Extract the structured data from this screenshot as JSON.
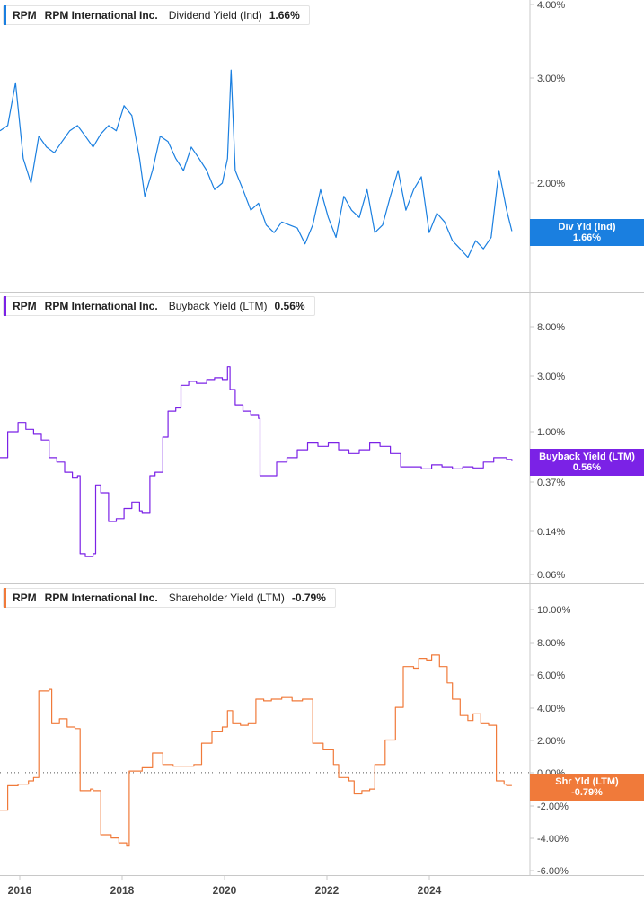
{
  "panels": [
    {
      "ticker": "RPM",
      "company": "RPM International Inc.",
      "metric": "Dividend Yield (Ind)",
      "value": "1.66%",
      "tag_label": "Div Yld (Ind)",
      "tag_value": "1.66%",
      "color": "#1a7fe0",
      "y_ticks": [
        "4.00%",
        "3.00%",
        "2.00%"
      ]
    },
    {
      "ticker": "RPM",
      "company": "RPM International Inc.",
      "metric": "Buyback Yield (LTM)",
      "value": "0.56%",
      "tag_label": "Buyback Yield (LTM)",
      "tag_value": "0.56%",
      "color": "#7b22e6",
      "y_ticks": [
        "8.00%",
        "3.00%",
        "1.00%",
        "0.37%",
        "0.14%",
        "0.06%"
      ]
    },
    {
      "ticker": "RPM",
      "company": "RPM International Inc.",
      "metric": "Shareholder Yield (LTM)",
      "value": "-0.79%",
      "tag_label": "Shr Yld (LTM)",
      "tag_value": "-0.79%",
      "color": "#f07a3a",
      "y_ticks": [
        "10.00%",
        "8.00%",
        "6.00%",
        "4.00%",
        "2.00%",
        "0.00%",
        "-2.00%",
        "-4.00%",
        "-6.00%"
      ]
    }
  ],
  "x_ticks": [
    "2016",
    "2018",
    "2020",
    "2022",
    "2024"
  ],
  "chart_data": [
    {
      "type": "line",
      "title": "",
      "series": [
        {
          "name": "Dividend Yield (Ind)",
          "color": "#1a7fe0",
          "x": [
            2015.75,
            2015.9,
            2016.05,
            2016.2,
            2016.35,
            2016.5,
            2016.65,
            2016.8,
            2016.95,
            2017.1,
            2017.25,
            2017.4,
            2017.55,
            2017.7,
            2017.85,
            2018.0,
            2018.15,
            2018.3,
            2018.45,
            2018.55,
            2018.7,
            2018.85,
            2019.0,
            2019.15,
            2019.3,
            2019.45,
            2019.6,
            2019.75,
            2019.9,
            2020.05,
            2020.15,
            2020.22,
            2020.3,
            2020.45,
            2020.6,
            2020.75,
            2020.9,
            2021.05,
            2021.2,
            2021.35,
            2021.5,
            2021.65,
            2021.8,
            2021.95,
            2022.1,
            2022.25,
            2022.4,
            2022.55,
            2022.7,
            2022.85,
            2023.0,
            2023.15,
            2023.3,
            2023.45,
            2023.6,
            2023.75,
            2023.9,
            2024.05,
            2024.2,
            2024.35,
            2024.5,
            2024.65,
            2024.8,
            2024.95,
            2025.1,
            2025.25,
            2025.4,
            2025.55,
            2025.65
          ],
          "y": [
            2.45,
            2.5,
            2.95,
            2.2,
            2.0,
            2.4,
            2.3,
            2.25,
            2.35,
            2.45,
            2.5,
            2.4,
            2.3,
            2.42,
            2.5,
            2.45,
            2.7,
            2.6,
            2.2,
            1.9,
            2.1,
            2.4,
            2.35,
            2.2,
            2.1,
            2.3,
            2.2,
            2.1,
            1.95,
            2.0,
            2.2,
            3.1,
            2.1,
            1.95,
            1.8,
            1.85,
            1.7,
            1.65,
            1.72,
            1.7,
            1.68,
            1.58,
            1.7,
            1.95,
            1.75,
            1.62,
            1.9,
            1.8,
            1.75,
            1.95,
            1.65,
            1.7,
            1.9,
            2.1,
            1.8,
            1.95,
            2.05,
            1.65,
            1.78,
            1.72,
            1.6,
            1.55,
            1.5,
            1.6,
            1.55,
            1.62,
            2.1,
            1.8,
            1.66
          ]
        }
      ],
      "ylim": [
        1.4,
        4.0
      ],
      "xlim": [
        2015.75,
        2026.0
      ],
      "y_scale": "log"
    },
    {
      "type": "line",
      "title": "",
      "series": [
        {
          "name": "Buyback Yield (LTM)",
          "color": "#7b22e6",
          "x": [
            2015.75,
            2015.9,
            2016.1,
            2016.25,
            2016.4,
            2016.55,
            2016.7,
            2016.85,
            2017.0,
            2017.15,
            2017.25,
            2017.3,
            2017.4,
            2017.55,
            2017.6,
            2017.7,
            2017.85,
            2018.0,
            2018.15,
            2018.3,
            2018.45,
            2018.5,
            2018.65,
            2018.75,
            2018.9,
            2019.0,
            2019.15,
            2019.25,
            2019.4,
            2019.55,
            2019.75,
            2019.9,
            2020.05,
            2020.15,
            2020.2,
            2020.3,
            2020.45,
            2020.6,
            2020.75,
            2020.78,
            2020.95,
            2021.1,
            2021.3,
            2021.5,
            2021.7,
            2021.9,
            2022.1,
            2022.3,
            2022.5,
            2022.7,
            2022.9,
            2023.1,
            2023.3,
            2023.5,
            2023.7,
            2023.9,
            2024.1,
            2024.3,
            2024.5,
            2024.7,
            2024.9,
            2025.1,
            2025.3,
            2025.45,
            2025.55,
            2025.65
          ],
          "y": [
            0.6,
            1.0,
            1.2,
            1.05,
            0.95,
            0.85,
            0.6,
            0.55,
            0.45,
            0.4,
            0.42,
            0.09,
            0.085,
            0.09,
            0.35,
            0.3,
            0.17,
            0.18,
            0.22,
            0.25,
            0.21,
            0.2,
            0.42,
            0.45,
            0.9,
            1.5,
            1.6,
            2.5,
            2.7,
            2.6,
            2.8,
            2.9,
            2.8,
            3.6,
            2.3,
            1.7,
            1.5,
            1.4,
            1.3,
            0.42,
            0.42,
            0.55,
            0.6,
            0.7,
            0.8,
            0.75,
            0.8,
            0.7,
            0.65,
            0.7,
            0.8,
            0.75,
            0.65,
            0.5,
            0.5,
            0.48,
            0.52,
            0.5,
            0.48,
            0.5,
            0.49,
            0.55,
            0.6,
            0.6,
            0.58,
            0.56
          ]
        }
      ],
      "ylim": [
        0.05,
        10
      ],
      "xlim": [
        2015.75,
        2026.0
      ],
      "y_scale": "log"
    },
    {
      "type": "line",
      "title": "",
      "series": [
        {
          "name": "Shareholder Yield (LTM)",
          "color": "#f07a3a",
          "x": [
            2015.75,
            2015.9,
            2016.1,
            2016.3,
            2016.4,
            2016.5,
            2016.7,
            2016.75,
            2016.9,
            2017.05,
            2017.2,
            2017.3,
            2017.5,
            2017.55,
            2017.7,
            2017.9,
            2018.05,
            2018.2,
            2018.25,
            2018.5,
            2018.7,
            2018.9,
            2019.1,
            2019.3,
            2019.5,
            2019.65,
            2019.85,
            2020.05,
            2020.15,
            2020.25,
            2020.4,
            2020.55,
            2020.7,
            2020.85,
            2021.0,
            2021.2,
            2021.4,
            2021.6,
            2021.75,
            2021.8,
            2022.0,
            2022.2,
            2022.3,
            2022.5,
            2022.6,
            2022.75,
            2022.9,
            2023.0,
            2023.2,
            2023.4,
            2023.55,
            2023.75,
            2023.85,
            2024.0,
            2024.1,
            2024.25,
            2024.4,
            2024.5,
            2024.65,
            2024.8,
            2024.9,
            2025.05,
            2025.2,
            2025.35,
            2025.5,
            2025.55,
            2025.65
          ],
          "y": [
            -2.3,
            -0.8,
            -0.7,
            -0.5,
            -0.3,
            5.0,
            5.1,
            3.0,
            3.3,
            2.8,
            2.7,
            -1.1,
            -1.0,
            -1.1,
            -3.8,
            -4.0,
            -4.3,
            -4.5,
            0.1,
            0.3,
            1.2,
            0.5,
            0.4,
            0.4,
            0.5,
            1.8,
            2.5,
            2.8,
            3.8,
            3.0,
            2.9,
            3.0,
            4.5,
            4.4,
            4.5,
            4.6,
            4.4,
            4.5,
            4.5,
            1.8,
            1.4,
            0.5,
            -0.3,
            -0.5,
            -1.3,
            -1.1,
            -1.0,
            0.5,
            2.0,
            4.0,
            6.5,
            6.4,
            7.0,
            6.9,
            7.2,
            6.5,
            5.5,
            4.5,
            3.5,
            3.2,
            3.6,
            3.0,
            2.9,
            -0.5,
            -0.7,
            -0.79,
            -0.79
          ]
        }
      ],
      "ylim": [
        -6.0,
        10.0
      ],
      "xlim": [
        2015.75,
        2026.0
      ],
      "y_scale": "linear"
    }
  ]
}
